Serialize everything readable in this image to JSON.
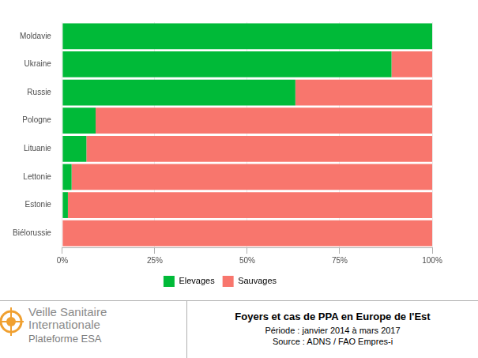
{
  "chart_data": {
    "type": "bar",
    "orientation": "horizontal",
    "stacked": true,
    "title": "Foyers et cas de PPA en Europe de l'Est",
    "subtitle": "Période : janvier 2014 à mars 2017",
    "source": "Source : ADNS / FAO Empres-i",
    "categories": [
      "Moldavie",
      "Ukraine",
      "Russie",
      "Pologne",
      "Lituanie",
      "Lettonie",
      "Estonie",
      "Biélorussie"
    ],
    "series": [
      {
        "name": "Elevages",
        "color": "#00ba38",
        "values": [
          100,
          89,
          63,
          9,
          6.5,
          2.5,
          1.5,
          0
        ]
      },
      {
        "name": "Sauvages",
        "color": "#f8766d",
        "values": [
          0,
          11,
          37,
          91,
          93.5,
          97.5,
          98.5,
          100
        ]
      }
    ],
    "xlim": [
      0,
      100
    ],
    "xticks": [
      {
        "value": 0,
        "label": "0%"
      },
      {
        "value": 25,
        "label": "25%"
      },
      {
        "value": 50,
        "label": "50%"
      },
      {
        "value": 75,
        "label": "75%"
      },
      {
        "value": 100,
        "label": "100%"
      }
    ],
    "grid": true,
    "legend": "bottom",
    "data_labels": false
  },
  "logo": {
    "line1": "Veille Sanitaire",
    "line2": "Internationale",
    "line3": "Plateforme ESA"
  }
}
